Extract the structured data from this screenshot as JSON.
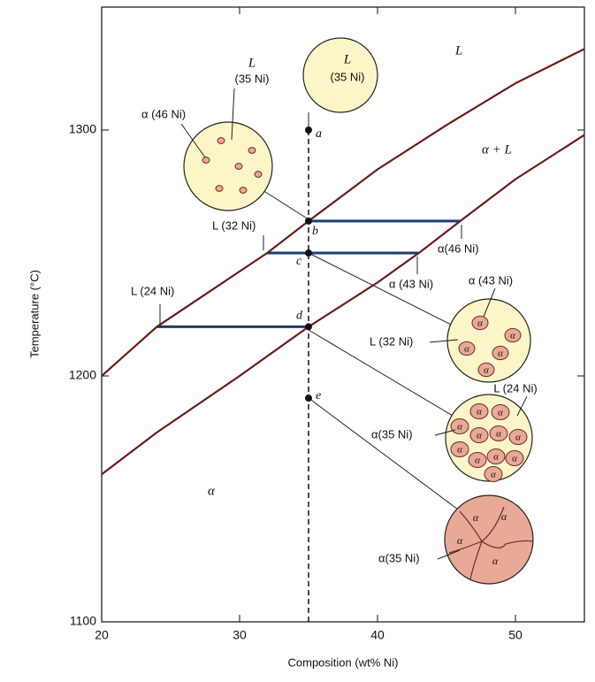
{
  "chart_data": {
    "type": "line",
    "xlabel": "Composition (wt% Ni)",
    "ylabel": "Temperature (°C)",
    "xlim": [
      20,
      55
    ],
    "ylim": [
      1100,
      1350
    ],
    "xticks": [
      20,
      30,
      40,
      50
    ],
    "yticks": [
      1100,
      1200,
      1300
    ],
    "series": [
      {
        "color": "#6b1a1a",
        "x": [
          20,
          24,
          32,
          35,
          40,
          45,
          50,
          55
        ],
        "values": [
          1200,
          1220,
          1250,
          1263,
          1284,
          1302,
          1319,
          1333
        ]
      },
      {
        "color": "#6b1a1a",
        "x": [
          20,
          24,
          30,
          35,
          40,
          43,
          46,
          50,
          55
        ],
        "values": [
          1160,
          1177,
          1200,
          1220,
          1238,
          1250,
          1263,
          1280,
          1298
        ]
      }
    ],
    "composition": 35,
    "tie_lines": [
      {
        "color": "#1f3c6e",
        "x": [
          35,
          46
        ],
        "y": 1263
      },
      {
        "color": "#1f3c6e",
        "x": [
          32,
          43
        ],
        "y": 1250
      },
      {
        "color": "#1f3c6e",
        "x": [
          24,
          35
        ],
        "y": 1220
      }
    ],
    "points": [
      {
        "label": "a",
        "x": 35,
        "y": 1300
      },
      {
        "label": "b",
        "x": 35,
        "y": 1263
      },
      {
        "label": "c",
        "x": 35,
        "y": 1250
      },
      {
        "label": "d",
        "x": 35,
        "y": 1220
      },
      {
        "label": "e",
        "x": 35,
        "y": 1191
      }
    ],
    "annotations": [
      "L",
      "α + L",
      "α",
      "α(46 Ni)",
      "L (32 Ni)",
      "α (43 Ni)",
      "L (24 Ni)"
    ],
    "circles": [
      {
        "labels": [
          "L",
          "(35 Ni)"
        ]
      },
      {
        "labels": [
          "L",
          "(35 Ni)",
          "α (46 Ni)"
        ]
      },
      {
        "labels": [
          "α (43 Ni)",
          "L (32 Ni)"
        ]
      },
      {
        "labels": [
          "L (24 Ni)",
          "α(35 Ni)"
        ]
      },
      {
        "labels": [
          "α(35 Ni)"
        ]
      }
    ],
    "grain_label": "α"
  }
}
